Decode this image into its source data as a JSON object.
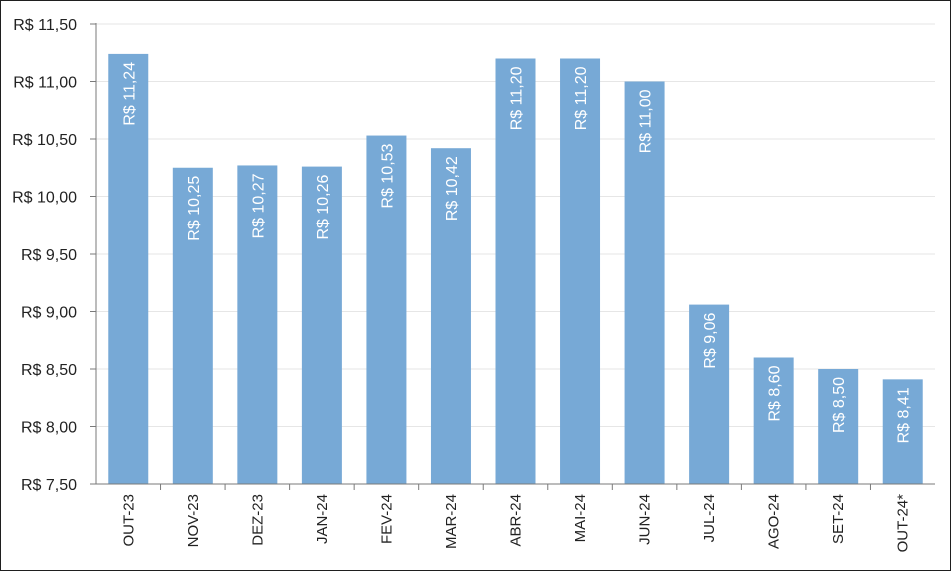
{
  "chart_data": {
    "type": "bar",
    "title": "",
    "xlabel": "",
    "ylabel": "",
    "categories": [
      "OUT-23",
      "NOV-23",
      "DEZ-23",
      "JAN-24",
      "FEV-24",
      "MAR-24",
      "ABR-24",
      "MAI-24",
      "JUN-24",
      "JUL-24",
      "AGO-24",
      "SET-24",
      "OUT-24*"
    ],
    "values": [
      11.24,
      10.25,
      10.27,
      10.26,
      10.53,
      10.42,
      11.2,
      11.2,
      11.0,
      9.06,
      8.6,
      8.5,
      8.41
    ],
    "value_labels": [
      "R$ 11,24",
      "R$ 10,25",
      "R$ 10,27",
      "R$ 10,26",
      "R$ 10,53",
      "R$ 10,42",
      "R$ 11,20",
      "R$ 11,20",
      "R$ 11,00",
      "R$ 9,06",
      "R$ 8,60",
      "R$ 8,50",
      "R$ 8,41"
    ],
    "yticks": [
      7.5,
      8.0,
      8.5,
      9.0,
      9.5,
      10.0,
      10.5,
      11.0,
      11.5
    ],
    "ytick_labels": [
      "R$ 7,50",
      "R$ 8,00",
      "R$ 8,50",
      "R$ 9,00",
      "R$ 9,50",
      "R$ 10,00",
      "R$ 10,50",
      "R$ 11,00",
      "R$ 11,50"
    ],
    "ylim": [
      7.5,
      11.5
    ],
    "grid": true,
    "bar_color": "#77a9d6"
  }
}
